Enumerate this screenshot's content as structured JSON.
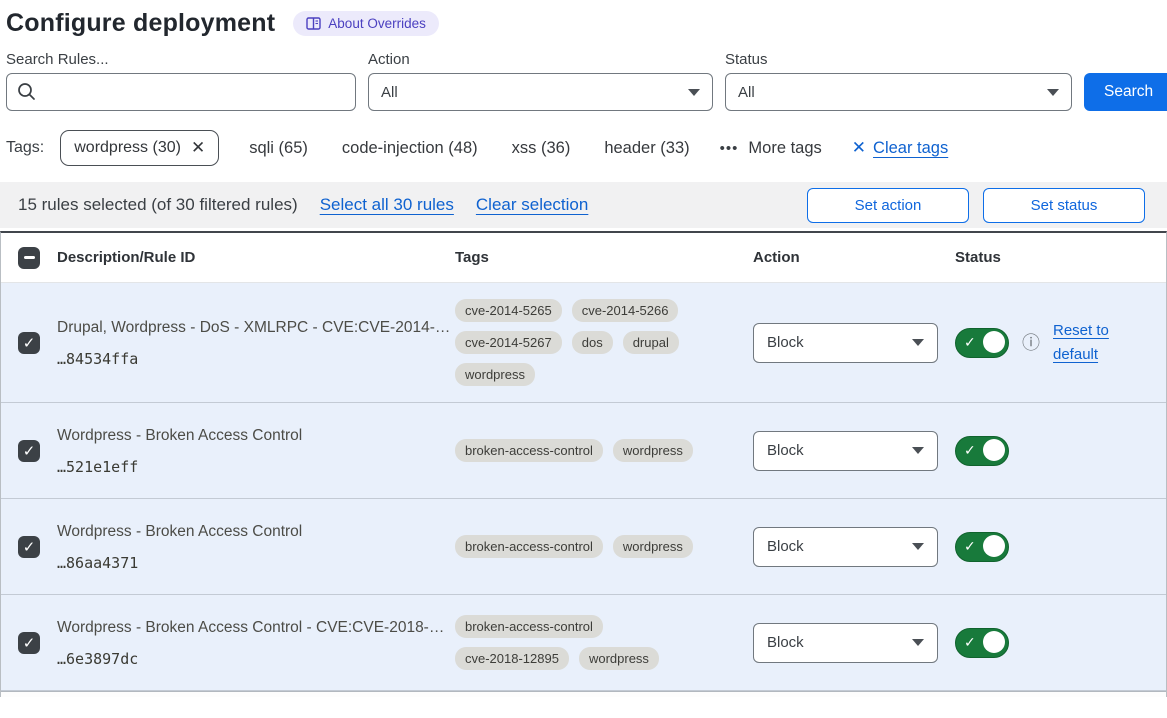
{
  "page": {
    "title": "Configure deployment",
    "about_badge": "About Overrides"
  },
  "filters": {
    "search_label": "Search Rules...",
    "action_label": "Action",
    "action_value": "All",
    "status_label": "Status",
    "status_value": "All",
    "search_button": "Search"
  },
  "tags_bar": {
    "label": "Tags:",
    "selected_tag": "wordpress (30)",
    "tags": [
      "sqli (65)",
      "code-injection (48)",
      "xss (36)",
      "header (33)"
    ],
    "more_tags": "More tags",
    "more_dots": "•••",
    "clear_tags": "Clear tags"
  },
  "selection_bar": {
    "summary": "15 rules selected (of 30 filtered rules)",
    "select_all": "Select all 30 rules",
    "clear_selection": "Clear selection",
    "set_action": "Set action",
    "set_status": "Set status"
  },
  "table": {
    "columns": [
      "Description/Rule ID",
      "Tags",
      "Action",
      "Status"
    ],
    "rows": [
      {
        "description": "Drupal, Wordpress - DoS - XMLRPC - CVE:CVE-2014-…",
        "rule_id": "…84534ffa",
        "tags": [
          "cve-2014-5265",
          "cve-2014-5266",
          "cve-2014-5267",
          "dos",
          "drupal",
          "wordpress"
        ],
        "action": "Block",
        "status_on": true,
        "has_info": true,
        "reset_link": "Reset to default"
      },
      {
        "description": "Wordpress - Broken Access Control",
        "rule_id": "…521e1eff",
        "tags": [
          "broken-access-control",
          "wordpress"
        ],
        "action": "Block",
        "status_on": true,
        "has_info": false,
        "reset_link": ""
      },
      {
        "description": "Wordpress - Broken Access Control",
        "rule_id": "…86aa4371",
        "tags": [
          "broken-access-control",
          "wordpress"
        ],
        "action": "Block",
        "status_on": true,
        "has_info": false,
        "reset_link": ""
      },
      {
        "description": "Wordpress - Broken Access Control - CVE:CVE-2018-…",
        "rule_id": "…6e3897dc",
        "tags": [
          "broken-access-control",
          "cve-2018-12895",
          "wordpress"
        ],
        "action": "Block",
        "status_on": true,
        "has_info": false,
        "reset_link": ""
      }
    ]
  },
  "colors": {
    "accent_blue": "#0e6ee8",
    "link_blue": "#0f62d0",
    "toggle_green": "#187a3b",
    "selected_row_bg": "#e9f0fb",
    "pill_bg": "#dbdbd7",
    "badge_bg": "#eceafb",
    "badge_text": "#4b40c0",
    "checkbox_dark": "#3c4146"
  }
}
